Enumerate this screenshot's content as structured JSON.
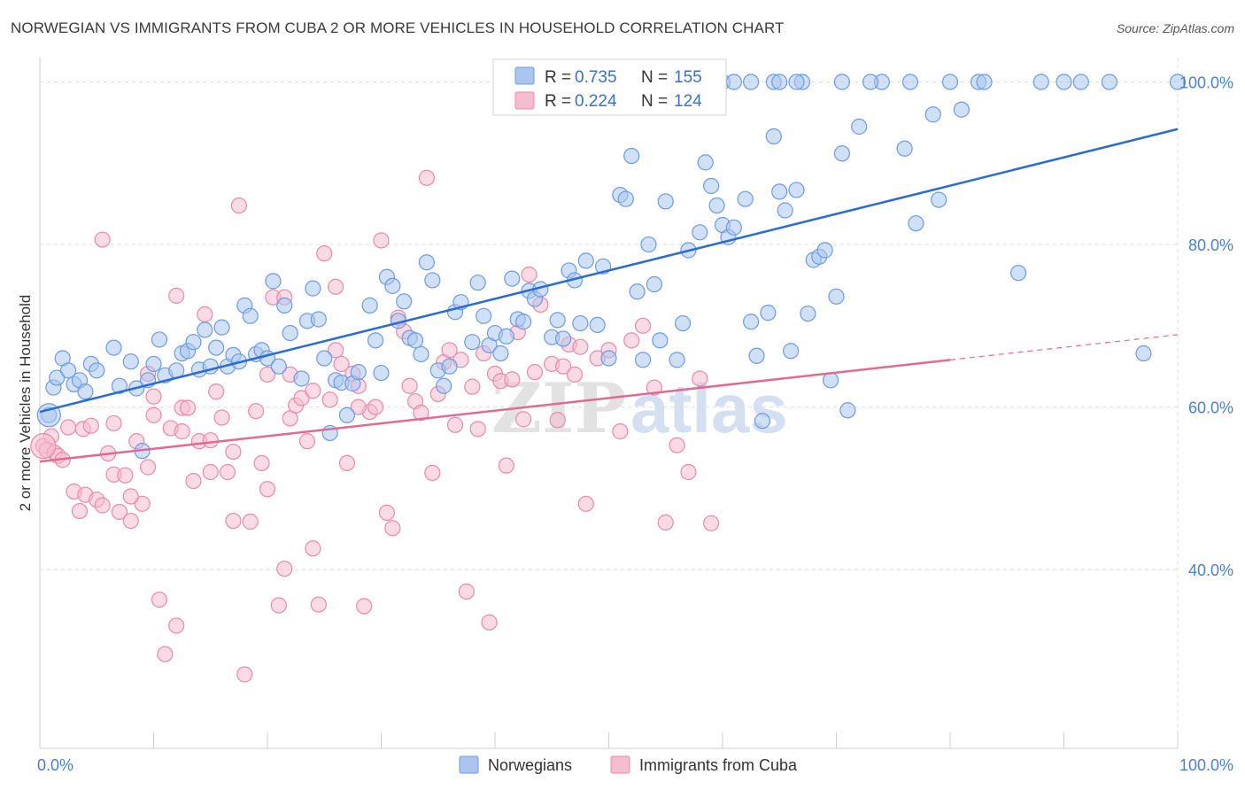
{
  "title": "NORWEGIAN VS IMMIGRANTS FROM CUBA 2 OR MORE VEHICLES IN HOUSEHOLD CORRELATION CHART",
  "source": "Source: ZipAtlas.com",
  "watermark": {
    "zip": "ZIP",
    "atlas": "atlas"
  },
  "colors": {
    "blue_fill": "#aac6f0",
    "blue_stroke": "#6d9be0",
    "blue_line": "#2d6ccc",
    "pink_fill": "#f6bcd0",
    "pink_stroke": "#e88aa8",
    "pink_line": "#e06a94",
    "grid": "#dcdcdc",
    "tick_label": "#4a7fd0"
  },
  "legend": {
    "rows": [
      {
        "r_label": "R =",
        "r_value": "0.735",
        "n_label": "N =",
        "n_value": "155",
        "color": "blue"
      },
      {
        "r_label": "R =",
        "r_value": "0.224",
        "n_label": "N =",
        "n_value": "124",
        "color": "pink"
      }
    ]
  },
  "bottom_legend": [
    "Norwegians",
    "Immigrants from Cuba"
  ],
  "chart_data": {
    "type": "scatter",
    "title": "NORWEGIAN VS IMMIGRANTS FROM CUBA 2 OR MORE VEHICLES IN HOUSEHOLD CORRELATION CHART",
    "xlabel": "",
    "ylabel": "2 or more Vehicles in Household",
    "xlim": [
      0,
      100
    ],
    "ylim": [
      18,
      103
    ],
    "x_tick_labels": [
      "0.0%",
      "100.0%"
    ],
    "y_ticks": [
      40,
      60,
      80,
      100
    ],
    "y_tick_labels": [
      "40.0%",
      "60.0%",
      "80.0%",
      "100.0%"
    ],
    "grid": true,
    "legend_position": "top-center",
    "series": [
      {
        "name": "Norwegians",
        "color": "blue",
        "trend": {
          "x": [
            0,
            100
          ],
          "y": [
            59.4,
            94.2
          ]
        },
        "points": [
          [
            0.8,
            59
          ],
          [
            1.2,
            62.4
          ],
          [
            1.5,
            63.6
          ],
          [
            2,
            66
          ],
          [
            2.5,
            64.5
          ],
          [
            3,
            62.8
          ],
          [
            3.5,
            63.3
          ],
          [
            4,
            61.9
          ],
          [
            4.5,
            65.3
          ],
          [
            5,
            64.5
          ],
          [
            6.5,
            67.3
          ],
          [
            7,
            62.6
          ],
          [
            8,
            65.6
          ],
          [
            8.5,
            62.3
          ],
          [
            9,
            54.6
          ],
          [
            9.5,
            63.3
          ],
          [
            10,
            65.3
          ],
          [
            10.5,
            68.3
          ],
          [
            11,
            63.9
          ],
          [
            12,
            64.5
          ],
          [
            12.5,
            66.6
          ],
          [
            13,
            66.9
          ],
          [
            13.5,
            68
          ],
          [
            14,
            64.6
          ],
          [
            14.5,
            69.5
          ],
          [
            15,
            65
          ],
          [
            15.5,
            67.3
          ],
          [
            16,
            69.8
          ],
          [
            16.5,
            65
          ],
          [
            17,
            66.4
          ],
          [
            17.5,
            65.6
          ],
          [
            18,
            72.5
          ],
          [
            18.5,
            71.2
          ],
          [
            19,
            66.5
          ],
          [
            19.5,
            67
          ],
          [
            20,
            66
          ],
          [
            20.5,
            75.5
          ],
          [
            21,
            65
          ],
          [
            21.5,
            72.5
          ],
          [
            22,
            69.1
          ],
          [
            23,
            63.5
          ],
          [
            23.5,
            70.6
          ],
          [
            24,
            74.6
          ],
          [
            24.5,
            70.8
          ],
          [
            25,
            66
          ],
          [
            25.5,
            56.8
          ],
          [
            26,
            63.3
          ],
          [
            26.5,
            63
          ],
          [
            27,
            59
          ],
          [
            27.5,
            62.9
          ],
          [
            28,
            64.3
          ],
          [
            29,
            72.5
          ],
          [
            29.5,
            68.2
          ],
          [
            30,
            64.2
          ],
          [
            30.5,
            76
          ],
          [
            31,
            74.9
          ],
          [
            31.5,
            70.6
          ],
          [
            32,
            73
          ],
          [
            32.5,
            68.5
          ],
          [
            33,
            68.2
          ],
          [
            33.5,
            66.5
          ],
          [
            34,
            77.8
          ],
          [
            34.5,
            75.6
          ],
          [
            35,
            64.5
          ],
          [
            35.5,
            62.6
          ],
          [
            36,
            65
          ],
          [
            36.5,
            71.7
          ],
          [
            37,
            72.9
          ],
          [
            38,
            68
          ],
          [
            38.5,
            75.3
          ],
          [
            39,
            71.2
          ],
          [
            39.5,
            67.6
          ],
          [
            40,
            69.1
          ],
          [
            40.5,
            66.6
          ],
          [
            41,
            68.7
          ],
          [
            41.5,
            75.8
          ],
          [
            42,
            70.8
          ],
          [
            42.5,
            70.5
          ],
          [
            43,
            74.3
          ],
          [
            43.5,
            73.3
          ],
          [
            44,
            74.5
          ],
          [
            45,
            68.6
          ],
          [
            45.5,
            70.7
          ],
          [
            46,
            68.4
          ],
          [
            46.5,
            76.8
          ],
          [
            47,
            75.6
          ],
          [
            47.5,
            70.3
          ],
          [
            48,
            78
          ],
          [
            49,
            70.1
          ],
          [
            49.5,
            77.3
          ],
          [
            50,
            66
          ],
          [
            51,
            86.1
          ],
          [
            51.5,
            85.6
          ],
          [
            52,
            90.9
          ],
          [
            52.5,
            74.2
          ],
          [
            53,
            65.8
          ],
          [
            53.5,
            80
          ],
          [
            54,
            75.1
          ],
          [
            54.5,
            68.2
          ],
          [
            55,
            85.3
          ],
          [
            56,
            65.8
          ],
          [
            56.5,
            70.3
          ],
          [
            57,
            79.3
          ],
          [
            58,
            81.5
          ],
          [
            58.5,
            90.1
          ],
          [
            59,
            87.2
          ],
          [
            59.5,
            84.8
          ],
          [
            60,
            82.4
          ],
          [
            60.5,
            80.9
          ],
          [
            61,
            82.1
          ],
          [
            62,
            85.6
          ],
          [
            62.5,
            70.5
          ],
          [
            63,
            66.3
          ],
          [
            63.5,
            58.3
          ],
          [
            64,
            71.6
          ],
          [
            64.5,
            93.3
          ],
          [
            65,
            86.5
          ],
          [
            65.5,
            84.2
          ],
          [
            66,
            66.9
          ],
          [
            66.5,
            86.7
          ],
          [
            67,
            100
          ],
          [
            67.5,
            71.5
          ],
          [
            68,
            78.1
          ],
          [
            68.5,
            78.5
          ],
          [
            69,
            79.3
          ],
          [
            69.5,
            63.3
          ],
          [
            70,
            73.6
          ],
          [
            70.5,
            91.2
          ],
          [
            71,
            59.6
          ],
          [
            72,
            94.5
          ],
          [
            74,
            100
          ],
          [
            76,
            91.8
          ],
          [
            77,
            82.6
          ],
          [
            78.5,
            96
          ],
          [
            79,
            85.5
          ],
          [
            80,
            100
          ],
          [
            81,
            96.6
          ],
          [
            86,
            76.5
          ],
          [
            90,
            100
          ],
          [
            94,
            100
          ],
          [
            97,
            66.6
          ],
          [
            100,
            100
          ],
          [
            60,
            100
          ],
          [
            62.5,
            100
          ],
          [
            64.5,
            100
          ],
          [
            66.5,
            100
          ],
          [
            70.5,
            100
          ],
          [
            73,
            100
          ],
          [
            76.5,
            100
          ],
          [
            82.5,
            100
          ],
          [
            88,
            100
          ],
          [
            91.5,
            100
          ],
          [
            83,
            100
          ],
          [
            61,
            100
          ],
          [
            65,
            100
          ]
        ]
      },
      {
        "name": "Immigrants from Cuba",
        "color": "pink",
        "trend": {
          "x": [
            0,
            80
          ],
          "y": [
            53.3,
            65.8
          ]
        },
        "trend_dashed": {
          "x": [
            80,
            100
          ],
          "y": [
            65.8,
            68.9
          ]
        },
        "points": [
          [
            0.3,
            55.2
          ],
          [
            0.6,
            54.7
          ],
          [
            1,
            56.4
          ],
          [
            1.3,
            54.4
          ],
          [
            1.6,
            54
          ],
          [
            2,
            53.5
          ],
          [
            2.5,
            57.5
          ],
          [
            3,
            49.6
          ],
          [
            3.5,
            47.2
          ],
          [
            3.8,
            57.3
          ],
          [
            4,
            49.2
          ],
          [
            4.5,
            57.7
          ],
          [
            5,
            48.6
          ],
          [
            5.5,
            47.9
          ],
          [
            6,
            54.3
          ],
          [
            6.5,
            51.7
          ],
          [
            7,
            47.1
          ],
          [
            7.5,
            51.6
          ],
          [
            8,
            46
          ],
          [
            8.5,
            55.8
          ],
          [
            9,
            48.1
          ],
          [
            9.5,
            52.6
          ],
          [
            10,
            61.3
          ],
          [
            10.5,
            36.3
          ],
          [
            11,
            29.6
          ],
          [
            11.5,
            57.4
          ],
          [
            12,
            33.1
          ],
          [
            12.5,
            59.9
          ],
          [
            13,
            59.9
          ],
          [
            13.5,
            50.9
          ],
          [
            14,
            55.8
          ],
          [
            14.5,
            71.4
          ],
          [
            15,
            55.9
          ],
          [
            15.5,
            61.9
          ],
          [
            16,
            58.7
          ],
          [
            16.5,
            52
          ],
          [
            17,
            54.5
          ],
          [
            17.5,
            84.8
          ],
          [
            18,
            27.1
          ],
          [
            18.5,
            45.9
          ],
          [
            19,
            59.5
          ],
          [
            19.5,
            53.1
          ],
          [
            20,
            49.9
          ],
          [
            20.5,
            73.5
          ],
          [
            21,
            35.6
          ],
          [
            21.5,
            40.1
          ],
          [
            22,
            58.6
          ],
          [
            22.5,
            60.2
          ],
          [
            23,
            61.1
          ],
          [
            23.5,
            55.8
          ],
          [
            24,
            42.6
          ],
          [
            24.5,
            35.7
          ],
          [
            25,
            78.9
          ],
          [
            25.5,
            60.9
          ],
          [
            26,
            74.8
          ],
          [
            26.5,
            65.3
          ],
          [
            27,
            53.1
          ],
          [
            27.5,
            64.1
          ],
          [
            28,
            62.6
          ],
          [
            28.5,
            35.5
          ],
          [
            29,
            59.4
          ],
          [
            29.5,
            60
          ],
          [
            30,
            80.5
          ],
          [
            30.5,
            47
          ],
          [
            31,
            45.1
          ],
          [
            31.5,
            71
          ],
          [
            32,
            69.3
          ],
          [
            32.5,
            62.6
          ],
          [
            33,
            60.7
          ],
          [
            33.5,
            59.3
          ],
          [
            34,
            88.2
          ],
          [
            34.5,
            51.9
          ],
          [
            35,
            61.6
          ],
          [
            35.5,
            65.5
          ],
          [
            36,
            67
          ],
          [
            36.5,
            57.8
          ],
          [
            37,
            65.8
          ],
          [
            37.5,
            37.3
          ],
          [
            38,
            62.5
          ],
          [
            38.5,
            57.3
          ],
          [
            39,
            66.6
          ],
          [
            39.5,
            33.5
          ],
          [
            40,
            64.1
          ],
          [
            40.5,
            63.2
          ],
          [
            41,
            52.8
          ],
          [
            41.5,
            63.4
          ],
          [
            42,
            69.2
          ],
          [
            42.5,
            58.5
          ],
          [
            43,
            76.3
          ],
          [
            43.5,
            64.3
          ],
          [
            44,
            72.6
          ],
          [
            45,
            65.3
          ],
          [
            45.5,
            58.4
          ],
          [
            46,
            65
          ],
          [
            46.5,
            67.7
          ],
          [
            47,
            64
          ],
          [
            47.5,
            67.4
          ],
          [
            48,
            48.1
          ],
          [
            49,
            66
          ],
          [
            50,
            67
          ],
          [
            51,
            57
          ],
          [
            52,
            68.2
          ],
          [
            53,
            70
          ],
          [
            54,
            62.4
          ],
          [
            55,
            45.8
          ],
          [
            56,
            55.3
          ],
          [
            57,
            52
          ],
          [
            58,
            63.5
          ],
          [
            59,
            45.7
          ],
          [
            5.5,
            80.6
          ],
          [
            9.5,
            64.1
          ],
          [
            12,
            73.7
          ],
          [
            21.5,
            73.5
          ],
          [
            6.5,
            58
          ],
          [
            8,
            49
          ],
          [
            10,
            59
          ],
          [
            12.5,
            57
          ],
          [
            15,
            52
          ],
          [
            17,
            46
          ],
          [
            20,
            64
          ],
          [
            22,
            64
          ],
          [
            24,
            62
          ],
          [
            26,
            67
          ],
          [
            28,
            60
          ]
        ]
      }
    ]
  }
}
